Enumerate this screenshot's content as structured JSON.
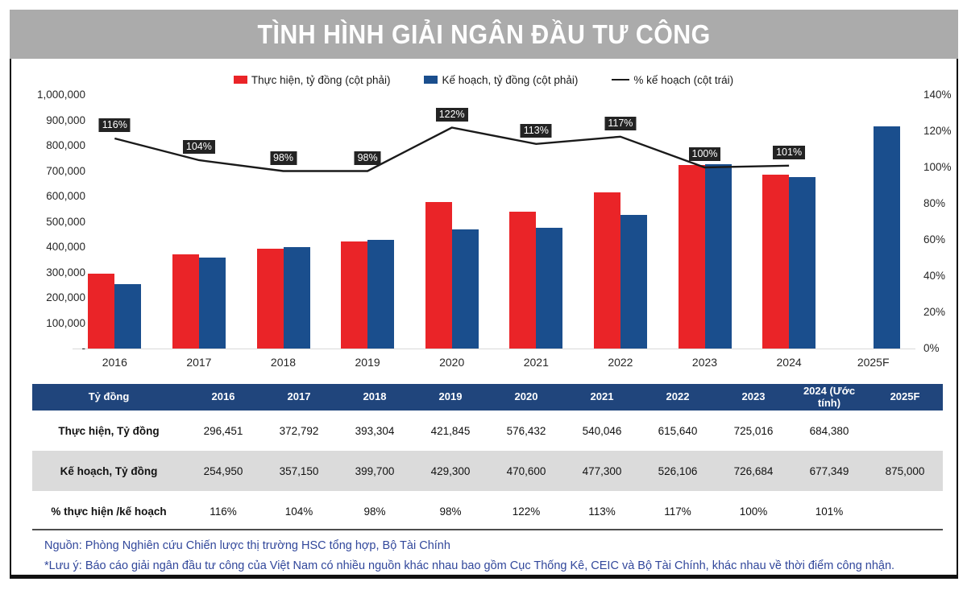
{
  "title": "TÌNH HÌNH GIẢI NGÂN ĐẦU TƯ CÔNG",
  "colors": {
    "title_bar_gray": "#ABABAB",
    "actual_red": "#EA2428",
    "plan_blue": "#1A4E8D",
    "line_black": "#1a1a1a",
    "table_header_navy": "#20457C",
    "alt_row_gray": "#dbdbdb",
    "footnote_blue": "#31479B",
    "label_box_dark": "#232323"
  },
  "legend": {
    "items": [
      {
        "marker": "red-square",
        "label": "Thực hiện, tỷ đồng (cột phải)"
      },
      {
        "marker": "blue-square",
        "label": "Kế hoạch, tỷ đồng (cột phải)"
      },
      {
        "marker": "black-line",
        "label": "% kế hoạch (cột trái)"
      }
    ]
  },
  "chart_data": {
    "type": "bar",
    "subtype": "grouped bars + line on secondary axis",
    "categories": [
      "2016",
      "2017",
      "2018",
      "2019",
      "2020",
      "2021",
      "2022",
      "2023",
      "2024",
      "2025F"
    ],
    "series": [
      {
        "name": "Thực hiện, tỷ đồng (cột phải)",
        "type": "bar",
        "color_key": "actual_red",
        "values": [
          296451,
          372792,
          393304,
          421845,
          576432,
          540046,
          615640,
          725016,
          684380,
          null
        ]
      },
      {
        "name": "Kế hoạch, tỷ đồng (cột phải)",
        "type": "bar",
        "color_key": "plan_blue",
        "values": [
          254950,
          357150,
          399700,
          429300,
          470600,
          477300,
          526106,
          726684,
          677349,
          875000
        ]
      },
      {
        "name": "% kế hoạch (cột trái)",
        "type": "line",
        "color_key": "line_black",
        "values": [
          116,
          104,
          98,
          98,
          122,
          113,
          117,
          100,
          101,
          null
        ],
        "point_labels": [
          "116%",
          "104%",
          "98%",
          "98%",
          "122%",
          "113%",
          "117%",
          "100%",
          "101%",
          ""
        ]
      }
    ],
    "left_axis": {
      "min": 0,
      "max": 1000000,
      "step": 100000,
      "zero_label": "-"
    },
    "right_axis": {
      "min": 0,
      "max": 140,
      "step": 20,
      "suffix": "%"
    },
    "grid": false,
    "legend_position": "top-center"
  },
  "table": {
    "header": [
      "Tỷ đồng",
      "2016",
      "2017",
      "2018",
      "2019",
      "2020",
      "2021",
      "2022",
      "2023",
      "2024 (Ước tính)",
      "2025F"
    ],
    "rows": [
      {
        "label": "Thực hiện, Tỷ đồng",
        "alt": false,
        "values": [
          "296,451",
          "372,792",
          "393,304",
          "421,845",
          "576,432",
          "540,046",
          "615,640",
          "725,016",
          "684,380",
          ""
        ]
      },
      {
        "label": "Kế hoạch, Tỷ đồng",
        "alt": true,
        "values": [
          "254,950",
          "357,150",
          "399,700",
          "429,300",
          "470,600",
          "477,300",
          "526,106",
          "726,684",
          "677,349",
          "875,000"
        ]
      },
      {
        "label": "% thực hiện /kế hoạch",
        "alt": false,
        "values": [
          "116%",
          "104%",
          "98%",
          "98%",
          "122%",
          "113%",
          "117%",
          "100%",
          "101%",
          ""
        ]
      }
    ]
  },
  "footnotes": {
    "source": "Nguồn: Phòng Nghiên cứu Chiến lược thị trường HSC tổng hợp, Bộ Tài Chính",
    "note": "*Lưu ý: Báo cáo giải ngân đầu tư công của Việt Nam có nhiều nguồn khác nhau bao gồm Cục Thống Kê, CEIC và Bộ Tài Chính, khác nhau về thời điểm công nhận."
  }
}
